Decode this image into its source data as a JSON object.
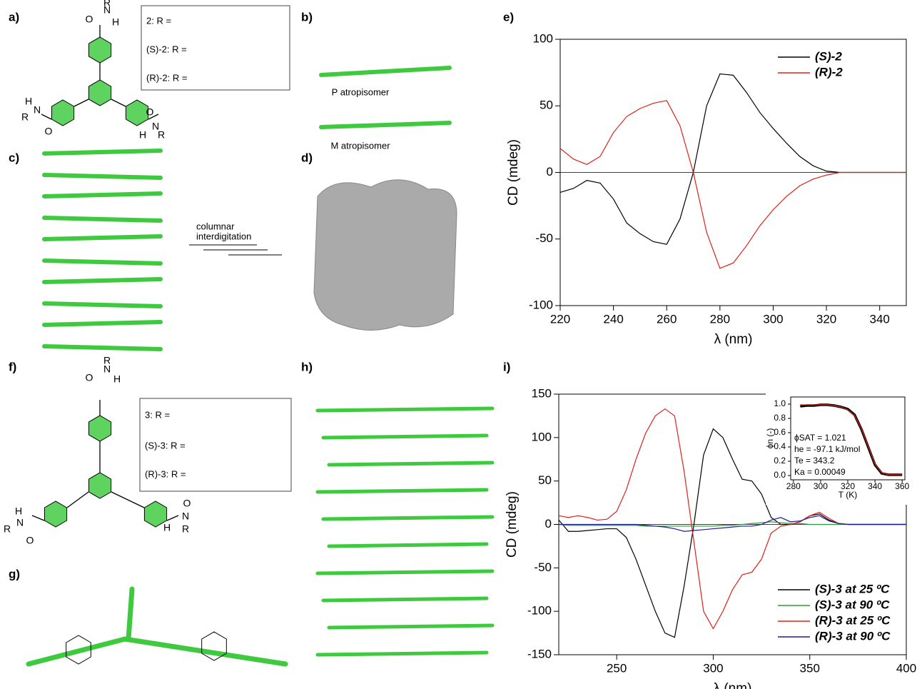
{
  "panel_labels": [
    "a)",
    "b)",
    "c)",
    "d)",
    "e)",
    "f)",
    "g)",
    "h)",
    "i)"
  ],
  "structure_2": {
    "labels": [
      "2: R =",
      "(S)-2: R =",
      "(R)-2: R ="
    ],
    "atoms": [
      "O",
      "N",
      "H",
      "R",
      "R",
      "N",
      "H",
      "O",
      "O",
      "N",
      "H",
      "R"
    ]
  },
  "atropisomers": [
    "P atropisomer",
    "M atropisomer"
  ],
  "arrow_label": [
    "columnar",
    "interdigitation"
  ],
  "structure_3": {
    "labels": [
      "3: R =",
      "(S)-3: R =",
      "(R)-3: R ="
    ],
    "atoms": [
      "O",
      "N",
      "H",
      "R",
      "R",
      "N",
      "H",
      "O",
      "O",
      "N",
      "H",
      "R"
    ]
  },
  "chart_data": [
    {
      "type": "line",
      "xlabel": "λ (nm)",
      "ylabel": "CD (mdeg)",
      "x": [
        220,
        225,
        230,
        235,
        240,
        245,
        250,
        255,
        260,
        265,
        270,
        275,
        280,
        285,
        290,
        295,
        300,
        305,
        310,
        315,
        320,
        325,
        330,
        335,
        340,
        345,
        350
      ],
      "series": [
        {
          "name": "(S)-2",
          "color": "#000000",
          "values": [
            -15,
            -12,
            -6,
            -8,
            -20,
            -38,
            -46,
            -52,
            -54,
            -35,
            0,
            50,
            74,
            73,
            60,
            45,
            33,
            22,
            12,
            5,
            1,
            0,
            0,
            0,
            0,
            0,
            0
          ]
        },
        {
          "name": "(R)-2",
          "color": "#e0201b",
          "values": [
            18,
            10,
            6,
            12,
            30,
            42,
            48,
            52,
            54,
            35,
            0,
            -45,
            -72,
            -68,
            -55,
            -40,
            -28,
            -18,
            -10,
            -5,
            -2,
            0,
            0,
            0,
            0,
            0,
            0
          ]
        }
      ],
      "xlim": [
        220,
        350
      ],
      "xticks": [
        220,
        240,
        260,
        280,
        300,
        320,
        340
      ],
      "ylim": [
        -100,
        100
      ],
      "yticks": [
        -100,
        -50,
        0,
        50,
        100
      ],
      "zero_line": true,
      "legend": "upper right"
    },
    {
      "type": "line",
      "xlabel": "λ (nm)",
      "ylabel": "CD (mdeg)",
      "x": [
        220,
        225,
        230,
        235,
        240,
        245,
        250,
        255,
        260,
        265,
        270,
        275,
        280,
        285,
        290,
        295,
        300,
        305,
        310,
        315,
        320,
        325,
        330,
        335,
        340,
        345,
        350,
        355,
        360,
        365,
        370,
        375,
        380,
        385,
        390,
        395,
        400
      ],
      "series": [
        {
          "name": "(S)-3 at 25 ºC",
          "color": "#000000",
          "values": [
            5,
            -8,
            -8,
            -7,
            -6,
            -5,
            -5,
            -15,
            -40,
            -70,
            -100,
            -125,
            -130,
            -70,
            0,
            80,
            110,
            100,
            75,
            52,
            50,
            35,
            8,
            0,
            0,
            3,
            10,
            12,
            5,
            1,
            0,
            0,
            0,
            0,
            0,
            0,
            0
          ]
        },
        {
          "name": "(S)-3 at 90 ºC",
          "color": "#2a9d3a",
          "values": [
            0,
            -1,
            -1,
            -1,
            -1,
            -1,
            -1,
            -1,
            -1,
            -2,
            -2,
            -2,
            -2,
            -2,
            -2,
            -2,
            -2,
            -1,
            -1,
            0,
            1,
            2,
            3,
            2,
            1,
            1,
            0,
            0,
            0,
            0,
            0,
            0,
            0,
            0,
            0,
            0,
            0
          ]
        },
        {
          "name": "(R)-3 at 25 ºC",
          "color": "#e0201b",
          "values": [
            10,
            8,
            10,
            8,
            5,
            6,
            15,
            40,
            75,
            105,
            125,
            133,
            125,
            60,
            -20,
            -100,
            -120,
            -100,
            -75,
            -58,
            -55,
            -40,
            -10,
            -2,
            0,
            3,
            10,
            14,
            7,
            1,
            0,
            0,
            0,
            0,
            0,
            0,
            0
          ]
        },
        {
          "name": "(R)-3 at 90 ºC",
          "color": "#1f1f8f",
          "values": [
            0,
            0,
            0,
            0,
            0,
            0,
            0,
            0,
            0,
            -1,
            -2,
            -3,
            -5,
            -8,
            -7,
            -6,
            -5,
            -4,
            -3,
            -2,
            -2,
            0,
            5,
            8,
            3,
            4,
            8,
            10,
            4,
            1,
            0,
            0,
            0,
            0,
            0,
            0,
            0
          ]
        }
      ],
      "xlim": [
        220,
        400
      ],
      "xticks": [
        250,
        300,
        350,
        400
      ],
      "ylim": [
        -150,
        150
      ],
      "yticks": [
        -150,
        -100,
        -50,
        0,
        50,
        100,
        150
      ],
      "zero_line": true,
      "legend": "lower right"
    },
    {
      "type": "line",
      "xlabel": "T (K)",
      "ylabel": "ϕn (-)",
      "annotations": [
        "ϕSAT = 1.021",
        "he = -97.1 kJ/mol",
        "Te = 343.2",
        "Ka = 0.00049"
      ],
      "x": [
        285,
        290,
        295,
        300,
        305,
        310,
        315,
        320,
        325,
        330,
        335,
        340,
        345,
        350,
        355,
        360
      ],
      "series": [
        {
          "color": "#000000",
          "values": [
            0.97,
            0.98,
            0.98,
            0.99,
            0.99,
            0.98,
            0.96,
            0.93,
            0.85,
            0.65,
            0.4,
            0.15,
            0.03,
            0.01,
            0.01,
            0.01
          ]
        },
        {
          "color": "#e0201b",
          "values": [
            0.99,
            0.99,
            0.99,
            0.99,
            0.99,
            0.98,
            0.96,
            0.92,
            0.84,
            0.66,
            0.41,
            0.16,
            0.04,
            0.01,
            0.01,
            0.01
          ]
        }
      ],
      "xlim": [
        278,
        362
      ],
      "xticks": [
        280,
        300,
        320,
        340,
        360
      ],
      "ylim": [
        -0.06,
        1.1
      ],
      "yticks": [
        {
          "value": 0,
          "label": "0.0"
        },
        0.2,
        0.4,
        0.6,
        0.8,
        {
          "value": 1,
          "label": "1.0"
        }
      ]
    }
  ]
}
